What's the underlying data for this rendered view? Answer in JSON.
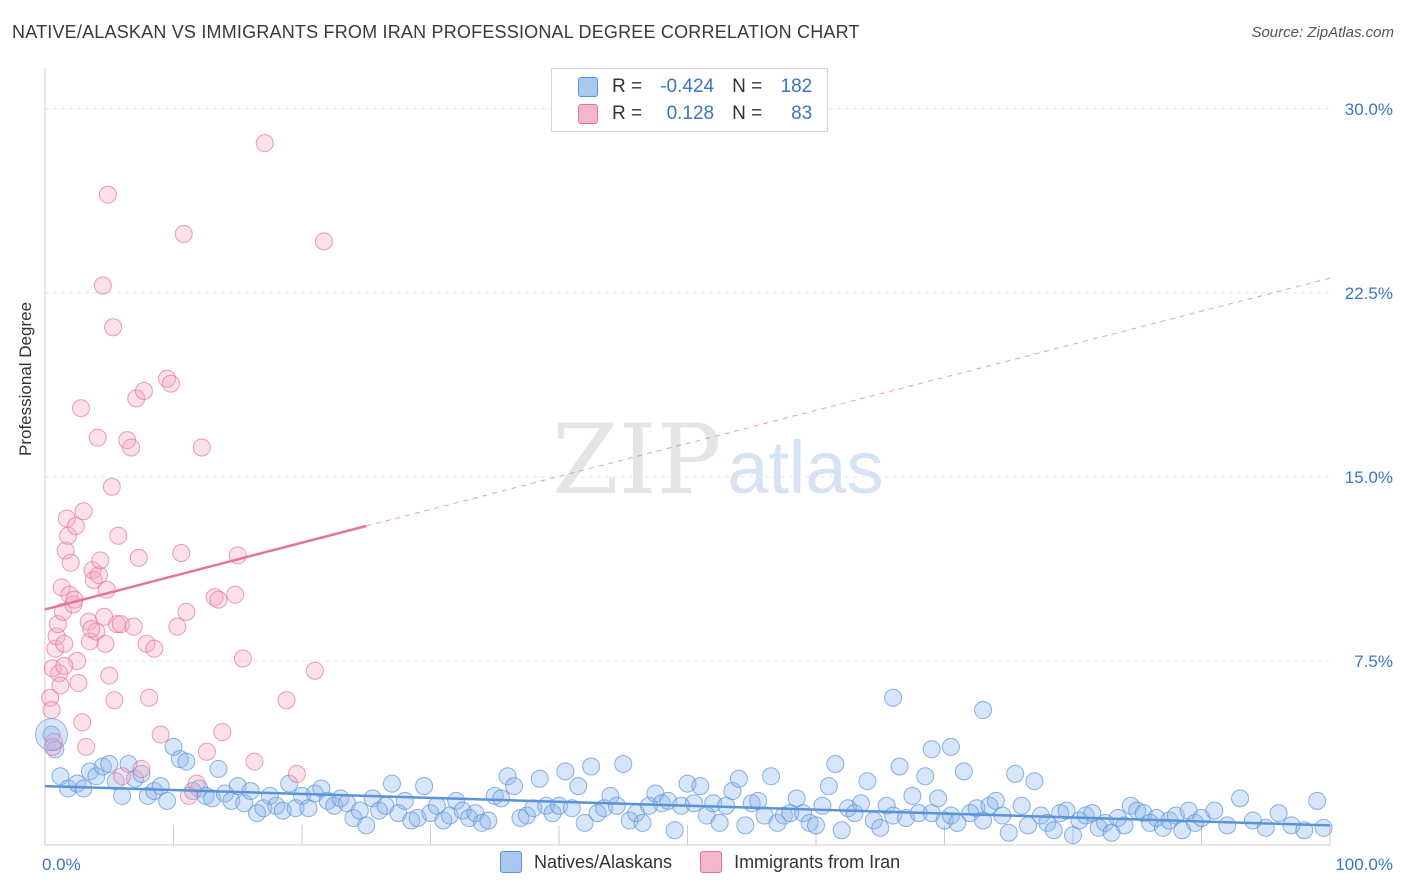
{
  "title": "NATIVE/ALASKAN VS IMMIGRANTS FROM IRAN PROFESSIONAL DEGREE CORRELATION CHART",
  "source": "Source: ZipAtlas.com",
  "watermark": {
    "zip": "ZIP",
    "atlas": "atlas"
  },
  "legend": {
    "rows": [
      {
        "r_label": "R =",
        "r_value": "-0.424",
        "n_label": "N =",
        "n_value": "182",
        "color": "#a9c8f0"
      },
      {
        "r_label": "R =",
        "r_value": "0.128",
        "n_label": "N =",
        "n_value": "83",
        "color": "#f6b6c9"
      }
    ]
  },
  "bottom_legend": [
    {
      "label": "Natives/Alaskans",
      "color": "#a9c8f0"
    },
    {
      "label": "Immigrants from Iran",
      "color": "#f6b6c9"
    }
  ],
  "chart_data": {
    "type": "scatter",
    "title": "NATIVE/ALASKAN VS IMMIGRANTS FROM IRAN PROFESSIONAL DEGREE CORRELATION CHART",
    "xlabel": "",
    "ylabel": "Professional Degree",
    "xlim": [
      0,
      100
    ],
    "ylim": [
      0,
      31.5
    ],
    "x_tick_labels": [
      "0.0%",
      "100.0%"
    ],
    "y_ticks": [
      7.5,
      15.0,
      22.5,
      30.0
    ],
    "y_tick_labels": [
      "7.5%",
      "15.0%",
      "22.5%",
      "30.0%"
    ],
    "grid": true,
    "series": [
      {
        "name": "Natives/Alaskans",
        "color": "#5b93d8",
        "fill": "rgba(140,180,235,0.35)",
        "trend": {
          "x": [
            0,
            100
          ],
          "y": [
            2.4,
            0.8
          ],
          "style": "solid"
        },
        "points": [
          [
            0.5,
            4.5
          ],
          [
            0.8,
            3.9
          ],
          [
            1.2,
            2.8
          ],
          [
            1.8,
            2.3
          ],
          [
            2.5,
            2.5
          ],
          [
            3.0,
            2.3
          ],
          [
            3.5,
            3.0
          ],
          [
            4.0,
            2.8
          ],
          [
            4.5,
            3.2
          ],
          [
            5.0,
            3.3
          ],
          [
            5.5,
            2.6
          ],
          [
            6.0,
            2.0
          ],
          [
            6.5,
            3.3
          ],
          [
            7.0,
            2.7
          ],
          [
            7.5,
            2.9
          ],
          [
            8.0,
            2.0
          ],
          [
            8.5,
            2.2
          ],
          [
            9.0,
            2.4
          ],
          [
            9.5,
            1.8
          ],
          [
            10.0,
            4.0
          ],
          [
            10.5,
            3.5
          ],
          [
            11.0,
            3.4
          ],
          [
            11.5,
            2.2
          ],
          [
            12.0,
            2.3
          ],
          [
            12.5,
            2.0
          ],
          [
            13.0,
            1.9
          ],
          [
            13.5,
            3.1
          ],
          [
            14.0,
            2.1
          ],
          [
            14.5,
            1.8
          ],
          [
            15.0,
            2.4
          ],
          [
            15.5,
            1.7
          ],
          [
            16.0,
            2.2
          ],
          [
            16.5,
            1.3
          ],
          [
            17.0,
            1.5
          ],
          [
            17.5,
            2.0
          ],
          [
            18.0,
            1.6
          ],
          [
            18.5,
            1.4
          ],
          [
            19.0,
            2.5
          ],
          [
            19.5,
            1.5
          ],
          [
            20.0,
            2.0
          ],
          [
            20.5,
            1.5
          ],
          [
            21.0,
            2.1
          ],
          [
            21.5,
            2.3
          ],
          [
            22.0,
            1.8
          ],
          [
            22.5,
            1.6
          ],
          [
            23.0,
            1.9
          ],
          [
            23.5,
            1.7
          ],
          [
            24.0,
            1.1
          ],
          [
            24.5,
            1.4
          ],
          [
            25.0,
            0.8
          ],
          [
            25.5,
            1.9
          ],
          [
            26.0,
            1.4
          ],
          [
            26.5,
            1.6
          ],
          [
            27.0,
            2.5
          ],
          [
            27.5,
            1.3
          ],
          [
            28.0,
            1.8
          ],
          [
            28.5,
            1.0
          ],
          [
            29.0,
            1.1
          ],
          [
            29.5,
            2.4
          ],
          [
            30.0,
            1.3
          ],
          [
            30.5,
            1.6
          ],
          [
            31.0,
            1.0
          ],
          [
            31.5,
            1.2
          ],
          [
            32.0,
            1.8
          ],
          [
            32.5,
            1.4
          ],
          [
            33.0,
            1.1
          ],
          [
            33.5,
            1.3
          ],
          [
            34.0,
            0.9
          ],
          [
            34.5,
            1.0
          ],
          [
            35.0,
            2.0
          ],
          [
            35.5,
            1.9
          ],
          [
            36.0,
            2.8
          ],
          [
            36.5,
            2.4
          ],
          [
            37.0,
            1.1
          ],
          [
            37.5,
            1.2
          ],
          [
            38.0,
            1.5
          ],
          [
            38.5,
            2.7
          ],
          [
            39.0,
            1.6
          ],
          [
            39.5,
            1.3
          ],
          [
            40.0,
            1.6
          ],
          [
            40.5,
            3.0
          ],
          [
            41.0,
            1.5
          ],
          [
            41.5,
            2.4
          ],
          [
            42.0,
            0.9
          ],
          [
            42.5,
            3.2
          ],
          [
            43.0,
            1.3
          ],
          [
            43.5,
            1.5
          ],
          [
            44.0,
            2.0
          ],
          [
            44.5,
            1.6
          ],
          [
            45.0,
            3.3
          ],
          [
            45.5,
            1.0
          ],
          [
            46.0,
            1.3
          ],
          [
            46.5,
            0.9
          ],
          [
            47.0,
            1.6
          ],
          [
            47.5,
            2.1
          ],
          [
            48.0,
            1.7
          ],
          [
            48.5,
            1.8
          ],
          [
            49.0,
            0.6
          ],
          [
            49.5,
            1.6
          ],
          [
            50.0,
            2.5
          ],
          [
            50.5,
            1.7
          ],
          [
            51.0,
            2.4
          ],
          [
            51.5,
            1.2
          ],
          [
            52.0,
            1.7
          ],
          [
            52.5,
            0.9
          ],
          [
            53.0,
            1.6
          ],
          [
            53.5,
            2.2
          ],
          [
            54.0,
            2.7
          ],
          [
            54.5,
            0.8
          ],
          [
            55.0,
            1.7
          ],
          [
            55.5,
            1.8
          ],
          [
            56.0,
            1.2
          ],
          [
            56.5,
            2.8
          ],
          [
            57.0,
            0.9
          ],
          [
            57.5,
            1.2
          ],
          [
            58.0,
            1.3
          ],
          [
            58.5,
            1.9
          ],
          [
            59.0,
            1.3
          ],
          [
            59.5,
            0.9
          ],
          [
            60.0,
            0.8
          ],
          [
            60.5,
            1.6
          ],
          [
            61.0,
            2.4
          ],
          [
            61.5,
            3.3
          ],
          [
            62.0,
            0.6
          ],
          [
            62.5,
            1.5
          ],
          [
            63.0,
            1.3
          ],
          [
            63.5,
            1.7
          ],
          [
            64.0,
            2.6
          ],
          [
            64.5,
            1.0
          ],
          [
            65.0,
            0.7
          ],
          [
            65.5,
            1.6
          ],
          [
            66.0,
            1.2
          ],
          [
            66.5,
            3.2
          ],
          [
            67.0,
            1.1
          ],
          [
            67.5,
            2.0
          ],
          [
            68.0,
            1.3
          ],
          [
            68.5,
            2.8
          ],
          [
            69.0,
            1.3
          ],
          [
            69.5,
            1.9
          ],
          [
            70.0,
            1.0
          ],
          [
            70.5,
            1.2
          ],
          [
            71.0,
            0.9
          ],
          [
            71.5,
            3.0
          ],
          [
            72.0,
            1.3
          ],
          [
            72.5,
            1.5
          ],
          [
            73.0,
            1.0
          ],
          [
            73.5,
            1.6
          ],
          [
            74.0,
            1.8
          ],
          [
            74.5,
            1.2
          ],
          [
            75.0,
            0.5
          ],
          [
            75.5,
            2.9
          ],
          [
            76.0,
            1.6
          ],
          [
            76.5,
            0.8
          ],
          [
            77.0,
            2.6
          ],
          [
            77.5,
            1.2
          ],
          [
            78.0,
            0.9
          ],
          [
            78.5,
            0.6
          ],
          [
            79.0,
            1.3
          ],
          [
            79.5,
            1.4
          ],
          [
            80.0,
            0.4
          ],
          [
            80.5,
            1.0
          ],
          [
            81.0,
            1.2
          ],
          [
            81.5,
            1.3
          ],
          [
            82.0,
            0.7
          ],
          [
            82.5,
            0.9
          ],
          [
            83.0,
            0.5
          ],
          [
            83.5,
            1.1
          ],
          [
            84.0,
            0.8
          ],
          [
            84.5,
            1.6
          ],
          [
            85.0,
            1.4
          ],
          [
            85.5,
            1.3
          ],
          [
            86.0,
            0.9
          ],
          [
            86.5,
            1.1
          ],
          [
            87.0,
            0.7
          ],
          [
            87.5,
            1.0
          ],
          [
            88.0,
            1.2
          ],
          [
            88.5,
            0.6
          ],
          [
            89.0,
            1.4
          ],
          [
            89.5,
            0.9
          ],
          [
            90.0,
            1.1
          ],
          [
            91.0,
            1.4
          ],
          [
            92.0,
            0.8
          ],
          [
            93.0,
            1.9
          ],
          [
            94.0,
            1.0
          ],
          [
            95.0,
            0.7
          ],
          [
            96.0,
            1.3
          ],
          [
            97.0,
            0.8
          ],
          [
            98.0,
            0.6
          ],
          [
            99.0,
            1.8
          ],
          [
            99.5,
            0.7
          ],
          [
            66.0,
            6.0
          ],
          [
            73.0,
            5.5
          ],
          [
            70.5,
            4.0
          ],
          [
            69.0,
            3.9
          ]
        ]
      },
      {
        "name": "Immigrants from Iran",
        "color": "#e4729b",
        "fill": "rgba(245,170,195,0.35)",
        "trend": {
          "x": [
            0,
            25
          ],
          "y": [
            9.6,
            13.0
          ],
          "style": "solid",
          "extended": {
            "x": [
              25,
              100
            ],
            "y": [
              13.0,
              23.1
            ],
            "style": "dashed"
          }
        },
        "points": [
          [
            0.4,
            6.0
          ],
          [
            0.5,
            5.5
          ],
          [
            0.6,
            7.2
          ],
          [
            0.7,
            4.2
          ],
          [
            0.8,
            8.0
          ],
          [
            0.9,
            8.5
          ],
          [
            1.0,
            9.0
          ],
          [
            1.1,
            7.0
          ],
          [
            1.2,
            6.5
          ],
          [
            1.3,
            10.5
          ],
          [
            1.4,
            9.5
          ],
          [
            1.5,
            8.2
          ],
          [
            1.6,
            12.0
          ],
          [
            1.7,
            13.3
          ],
          [
            1.8,
            12.6
          ],
          [
            1.9,
            10.2
          ],
          [
            2.0,
            11.5
          ],
          [
            2.2,
            9.8
          ],
          [
            2.4,
            13.0
          ],
          [
            2.5,
            7.5
          ],
          [
            2.6,
            6.6
          ],
          [
            2.8,
            17.8
          ],
          [
            2.9,
            5.0
          ],
          [
            3.0,
            13.6
          ],
          [
            3.2,
            4.0
          ],
          [
            3.4,
            9.1
          ],
          [
            3.5,
            8.3
          ],
          [
            3.7,
            11.2
          ],
          [
            3.8,
            10.8
          ],
          [
            4.0,
            8.7
          ],
          [
            4.1,
            16.6
          ],
          [
            4.2,
            11.0
          ],
          [
            4.3,
            11.6
          ],
          [
            4.5,
            22.8
          ],
          [
            4.6,
            9.3
          ],
          [
            4.7,
            8.2
          ],
          [
            4.8,
            10.4
          ],
          [
            4.9,
            26.5
          ],
          [
            5.0,
            6.9
          ],
          [
            5.2,
            14.6
          ],
          [
            5.3,
            21.1
          ],
          [
            5.4,
            5.9
          ],
          [
            5.6,
            9.0
          ],
          [
            5.7,
            12.6
          ],
          [
            5.9,
            9.0
          ],
          [
            6.0,
            2.8
          ],
          [
            6.4,
            16.5
          ],
          [
            6.7,
            16.2
          ],
          [
            6.9,
            8.9
          ],
          [
            7.1,
            18.2
          ],
          [
            7.3,
            11.7
          ],
          [
            7.5,
            3.1
          ],
          [
            7.7,
            18.5
          ],
          [
            7.9,
            8.2
          ],
          [
            8.1,
            6.0
          ],
          [
            8.5,
            8.0
          ],
          [
            9.0,
            4.5
          ],
          [
            9.5,
            19.0
          ],
          [
            9.8,
            18.8
          ],
          [
            10.3,
            8.9
          ],
          [
            10.6,
            11.9
          ],
          [
            10.8,
            24.9
          ],
          [
            11.0,
            9.5
          ],
          [
            11.2,
            2.0
          ],
          [
            11.8,
            2.5
          ],
          [
            12.2,
            16.2
          ],
          [
            12.6,
            3.8
          ],
          [
            13.2,
            10.1
          ],
          [
            13.5,
            10.0
          ],
          [
            13.8,
            4.6
          ],
          [
            14.8,
            10.2
          ],
          [
            15.0,
            11.8
          ],
          [
            15.4,
            7.6
          ],
          [
            16.3,
            3.4
          ],
          [
            17.1,
            28.6
          ],
          [
            18.8,
            5.9
          ],
          [
            19.6,
            2.9
          ],
          [
            21.0,
            7.1
          ],
          [
            21.7,
            24.6
          ],
          [
            0.6,
            4.0
          ],
          [
            1.5,
            7.3
          ],
          [
            2.3,
            10.0
          ],
          [
            3.6,
            8.8
          ]
        ]
      }
    ]
  }
}
